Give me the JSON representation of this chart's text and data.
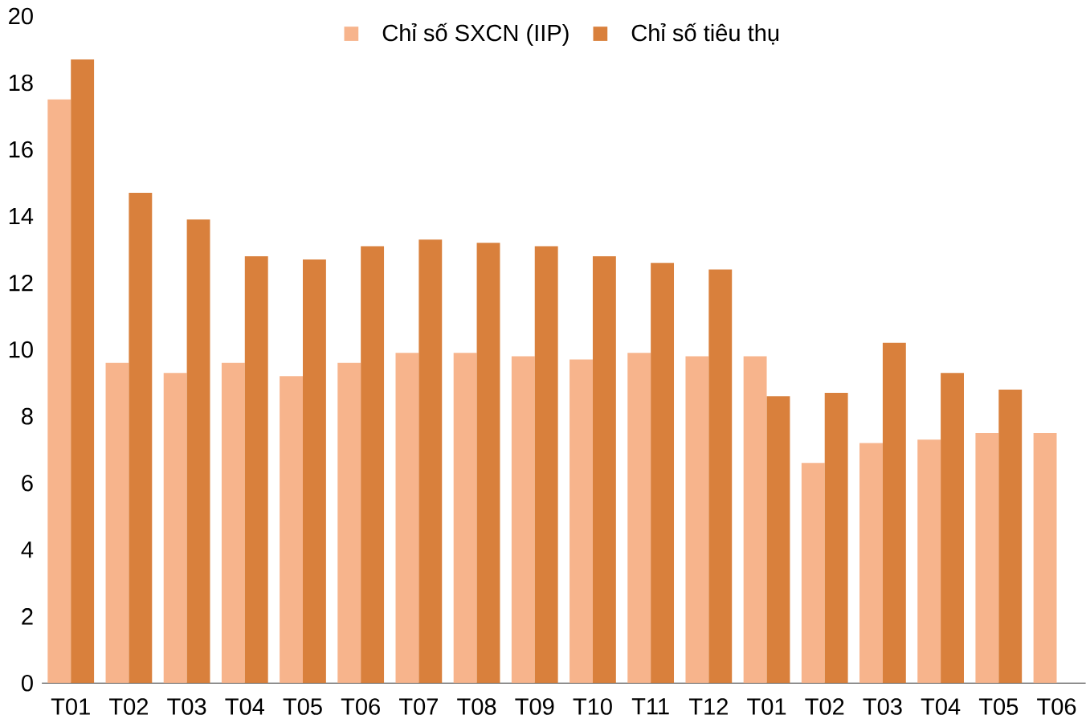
{
  "chart_data": {
    "type": "bar",
    "categories": [
      "T01",
      "T02",
      "T03",
      "T04",
      "T05",
      "T06",
      "T07",
      "T08",
      "T09",
      "T10",
      "T11",
      "T12",
      "T01",
      "T02",
      "T03",
      "T04",
      "T05",
      "T06"
    ],
    "series": [
      {
        "name": "Chỉ số SXCN (IIP)",
        "color": "#f7b48c",
        "values": [
          17.5,
          9.6,
          9.3,
          9.6,
          9.2,
          9.6,
          9.9,
          9.9,
          9.8,
          9.7,
          9.9,
          9.8,
          9.8,
          6.6,
          7.2,
          7.3,
          7.5,
          7.5
        ]
      },
      {
        "name": "Chỉ số tiêu thụ",
        "color": "#d9803c",
        "values": [
          18.7,
          14.7,
          13.9,
          12.8,
          12.7,
          13.1,
          13.3,
          13.2,
          13.1,
          12.8,
          12.6,
          12.4,
          8.6,
          8.7,
          10.2,
          9.3,
          8.8,
          null
        ]
      }
    ],
    "ylim": [
      0,
      20
    ],
    "yticks": [
      0,
      2,
      4,
      6,
      8,
      10,
      12,
      14,
      16,
      18,
      20
    ],
    "grid": false,
    "legend": "top"
  }
}
